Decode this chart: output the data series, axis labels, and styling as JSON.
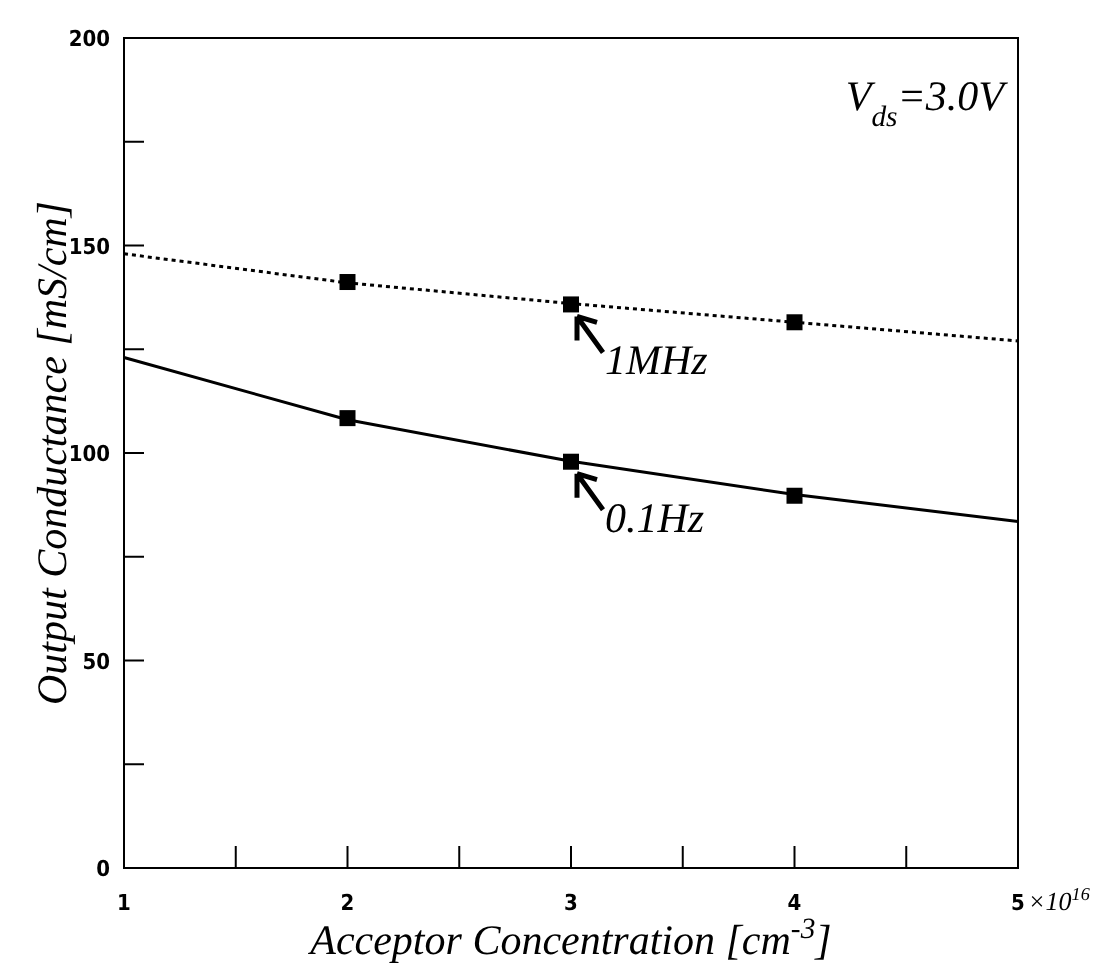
{
  "chart_data": {
    "type": "line",
    "xlabel": "Acceptor Concentration [cm$^{-3}$]",
    "ylabel": "Output Conductance [mS/cm]",
    "xlim": [
      1,
      5
    ],
    "ylim": [
      0,
      200
    ],
    "xticks": [
      1,
      {
        "value": 1.5,
        "label": null
      },
      2,
      {
        "value": 2.5,
        "label": null
      },
      3,
      {
        "value": 3.5,
        "label": null
      },
      4,
      {
        "value": 4.5,
        "label": null
      },
      5
    ],
    "yticks": [
      0,
      {
        "value": 25,
        "label": null
      },
      50,
      {
        "value": 75,
        "label": null
      },
      100,
      {
        "value": 125,
        "label": null
      },
      150,
      {
        "value": 175,
        "label": null
      },
      200
    ],
    "grid": false,
    "series": [
      {
        "color": "#000000",
        "line_style": "dotted",
        "x": [
          1,
          2,
          3,
          4,
          5
        ],
        "values": [
          148,
          141,
          136,
          131.5,
          127
        ]
      },
      {
        "color": "#000000",
        "line_style": "solid",
        "x": [
          1,
          2,
          3,
          4,
          5
        ],
        "values": [
          123,
          108,
          98,
          90,
          83.5
        ]
      },
      {
        "type": "scatter",
        "color": "#000000",
        "marker": "square",
        "x": [
          2,
          3,
          4
        ],
        "values": [
          141.2,
          135.8,
          131.5
        ]
      },
      {
        "type": "scatter",
        "color": "#000000",
        "marker": "square",
        "x": [
          2,
          3,
          4
        ],
        "values": [
          108.4,
          97.9,
          89.7
        ]
      }
    ],
    "annotations": [
      {
        "text": "1MHz",
        "x": 3,
        "y": 135.8
      },
      {
        "text": "0.1Hz",
        "x": 3,
        "y": 97.9
      },
      "V$_{ds}$=3.0V",
      "×10$^{16}$"
    ]
  }
}
